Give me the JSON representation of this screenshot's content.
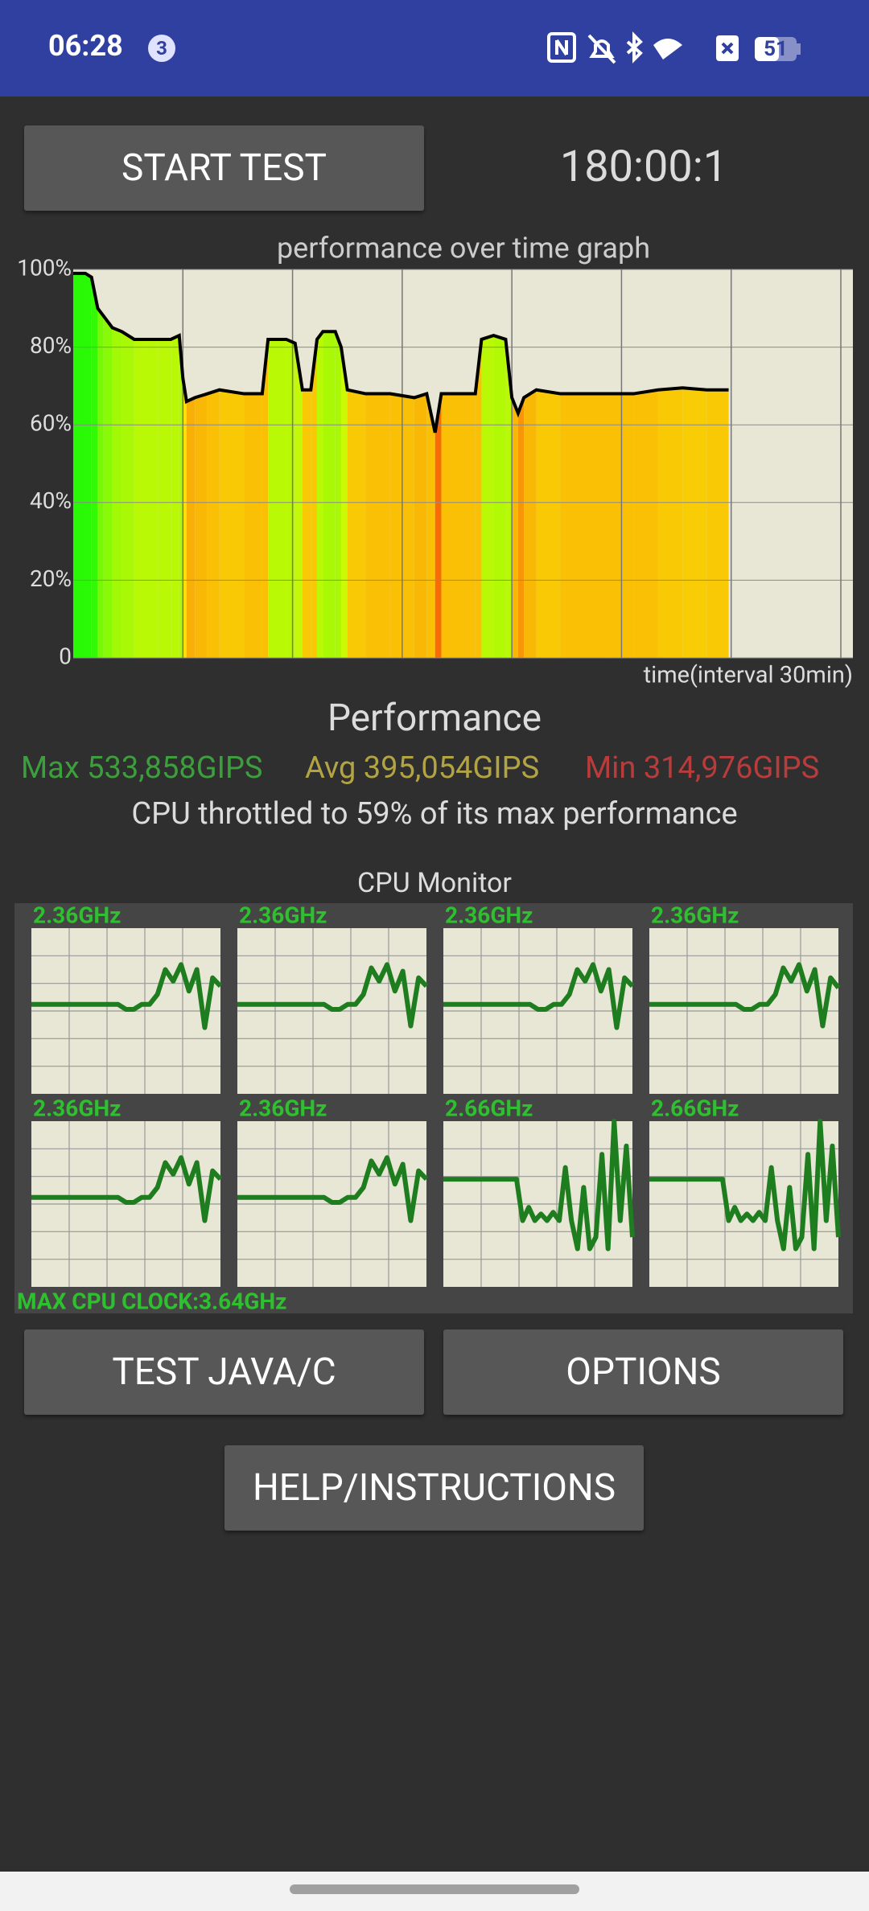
{
  "status_bar": {
    "time": "06:28",
    "notification_count": "3",
    "battery": "51"
  },
  "controls": {
    "start_button": "START TEST",
    "timer": "180:00:1"
  },
  "chart_data": {
    "type": "area",
    "title": "performance over time graph",
    "x_label": "time(interval 30min)",
    "x": [
      0,
      3.3,
      5,
      6.7,
      8.3,
      10.7,
      13.3,
      16.7,
      20,
      23.3,
      26.7,
      29,
      30,
      31,
      33.3,
      36.7,
      40,
      46.7,
      51.7,
      53.3,
      58.3,
      60.7,
      62.7,
      65,
      66.7,
      68.3,
      71.7,
      73.3,
      75,
      80,
      86.7,
      93.3,
      96.7,
      99,
      100.7,
      105,
      110,
      111.7,
      115,
      118.3,
      120,
      121.7,
      123.3,
      126.7,
      133.3,
      140,
      146.7,
      153.3,
      160,
      166.7,
      173.3,
      179.3
    ],
    "values": [
      99,
      99,
      98,
      90,
      88,
      85,
      84,
      82,
      82,
      82,
      82,
      83,
      72,
      66,
      67,
      68,
      69,
      68,
      68,
      82,
      82,
      81,
      69,
      69,
      82,
      84,
      84,
      80,
      69,
      68,
      68,
      67,
      68,
      58,
      68,
      68,
      68,
      82,
      83,
      82,
      67,
      63,
      67,
      69,
      68,
      68,
      68,
      68,
      69,
      69.5,
      69,
      69
    ],
    "xlim": [
      0,
      213.3
    ],
    "xticks": [
      30,
      60,
      90,
      120,
      150,
      180,
      210
    ],
    "ylim": [
      0,
      100
    ],
    "yticks": [
      0,
      {
        "value": 20,
        "label": "20%"
      },
      {
        "value": 40,
        "label": "40%"
      },
      {
        "value": 60,
        "label": "60%"
      },
      {
        "value": 80,
        "label": "80%"
      },
      {
        "value": 100,
        "label": "100%"
      }
    ],
    "grid": true,
    "line_color": "#000000",
    "background": "#e8e6d4"
  },
  "performance": {
    "title": "Performance",
    "max": "Max 533,858GIPS",
    "avg": "Avg 395,054GIPS",
    "min": "Min 314,976GIPS",
    "summary": "CPU throttled to 59% of its max performance"
  },
  "cpu_monitor": {
    "title": "CPU Monitor",
    "ylim": [
      0,
      100
    ],
    "color": "#1e7d1e",
    "cores": [
      {
        "label": "2.36GHz",
        "values": [
          54,
          54,
          54,
          54,
          54,
          54,
          54,
          54,
          54,
          54,
          54,
          54,
          51,
          51,
          54,
          54,
          60,
          75,
          68,
          78,
          62,
          75,
          40,
          70,
          65
        ]
      },
      {
        "label": "2.36GHz",
        "values": [
          54,
          54,
          54,
          54,
          54,
          54,
          54,
          54,
          54,
          54,
          54,
          54,
          51,
          51,
          54,
          54,
          60,
          76,
          68,
          78,
          62,
          74,
          41,
          70,
          65
        ]
      },
      {
        "label": "2.36GHz",
        "values": [
          54,
          54,
          54,
          54,
          54,
          54,
          54,
          54,
          54,
          54,
          54,
          54,
          51,
          51,
          54,
          54,
          60,
          75,
          68,
          78,
          62,
          75,
          40,
          70,
          65
        ]
      },
      {
        "label": "2.36GHz",
        "values": [
          54,
          54,
          54,
          54,
          54,
          54,
          54,
          54,
          54,
          54,
          54,
          54,
          51,
          51,
          54,
          54,
          60,
          76,
          68,
          78,
          62,
          75,
          41,
          70,
          64
        ]
      },
      {
        "label": "2.36GHz",
        "values": [
          54,
          54,
          54,
          54,
          54,
          54,
          54,
          54,
          54,
          54,
          54,
          54,
          51,
          51,
          54,
          54,
          60,
          75,
          68,
          78,
          62,
          75,
          40,
          70,
          65
        ]
      },
      {
        "label": "2.36GHz",
        "values": [
          54,
          54,
          54,
          54,
          54,
          54,
          54,
          54,
          54,
          54,
          54,
          54,
          51,
          51,
          54,
          54,
          60,
          76,
          68,
          78,
          62,
          74,
          40,
          70,
          65
        ]
      },
      {
        "label": "2.66GHz",
        "values": [
          65,
          65,
          65,
          65,
          65,
          65,
          65,
          65,
          65,
          65,
          65,
          65,
          65,
          40,
          48,
          40,
          44,
          40,
          45,
          40,
          72,
          40,
          23,
          60,
          23,
          30,
          80,
          23,
          100,
          40,
          85,
          30
        ]
      },
      {
        "label": "2.66GHz",
        "values": [
          65,
          65,
          65,
          65,
          65,
          65,
          65,
          65,
          65,
          65,
          65,
          65,
          65,
          40,
          48,
          40,
          44,
          40,
          45,
          40,
          72,
          40,
          23,
          60,
          23,
          30,
          80,
          23,
          100,
          40,
          85,
          30
        ]
      }
    ],
    "max_clock": "MAX CPU CLOCK:3.64GHz"
  },
  "buttons": {
    "test": "TEST JAVA/C",
    "options": "OPTIONS",
    "help": "HELP/INSTRUCTIONS"
  }
}
